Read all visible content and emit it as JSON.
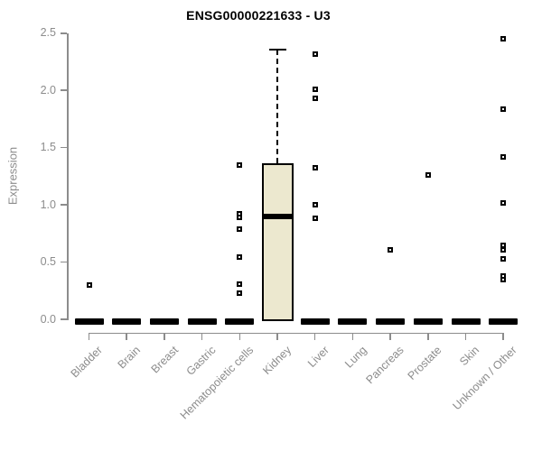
{
  "chart_data": {
    "type": "boxplot",
    "title": "ENSG00000221633 - U3",
    "ylabel": "Expression",
    "xlabel": "",
    "ylim": [
      0.0,
      2.5
    ],
    "yticks": [
      {
        "label": "0.0",
        "value": 0.0
      },
      {
        "label": "0.5",
        "value": 0.5
      },
      {
        "label": "1.0",
        "value": 1.0
      },
      {
        "label": "1.5",
        "value": 1.5
      },
      {
        "label": "2.0",
        "value": 2.0
      },
      {
        "label": "2.5",
        "value": 2.5
      }
    ],
    "grid": false,
    "legend": "none",
    "categories": [
      "Bladder",
      "Brain",
      "Breast",
      "Gastric",
      "Hematopoietic cells",
      "Kidney",
      "Liver",
      "Lung",
      "Pancreas",
      "Prostate",
      "Skin",
      "Unknown / Other"
    ],
    "series": [
      {
        "category": "Bladder",
        "q1": 0,
        "median": 0,
        "q3": 0,
        "whisker_low": 0,
        "whisker_high": 0,
        "outliers": [
          0.3
        ]
      },
      {
        "category": "Brain",
        "q1": 0,
        "median": 0,
        "q3": 0,
        "whisker_low": 0,
        "whisker_high": 0,
        "outliers": []
      },
      {
        "category": "Breast",
        "q1": 0,
        "median": 0,
        "q3": 0,
        "whisker_low": 0,
        "whisker_high": 0,
        "outliers": []
      },
      {
        "category": "Gastric",
        "q1": 0,
        "median": 0,
        "q3": 0,
        "whisker_low": 0,
        "whisker_high": 0,
        "outliers": []
      },
      {
        "category": "Hematopoietic cells",
        "q1": 0,
        "median": 0,
        "q3": 0,
        "whisker_low": 0,
        "whisker_high": 0,
        "outliers": [
          1.35,
          0.92,
          0.89,
          0.79,
          0.54,
          0.31,
          0.23
        ]
      },
      {
        "category": "Kidney",
        "q1": 0,
        "median": 0.9,
        "q3": 1.36,
        "whisker_low": 0,
        "whisker_high": 2.36,
        "outliers": []
      },
      {
        "category": "Liver",
        "q1": 0,
        "median": 0,
        "q3": 0,
        "whisker_low": 0,
        "whisker_high": 0,
        "outliers": [
          2.32,
          2.01,
          1.93,
          1.32,
          1.0,
          0.88
        ]
      },
      {
        "category": "Lung",
        "q1": 0,
        "median": 0,
        "q3": 0,
        "whisker_low": 0,
        "whisker_high": 0,
        "outliers": []
      },
      {
        "category": "Pancreas",
        "q1": 0,
        "median": 0,
        "q3": 0,
        "whisker_low": 0,
        "whisker_high": 0,
        "outliers": [
          0.61
        ]
      },
      {
        "category": "Prostate",
        "q1": 0,
        "median": 0,
        "q3": 0,
        "whisker_low": 0,
        "whisker_high": 0,
        "outliers": [
          1.26
        ]
      },
      {
        "category": "Skin",
        "q1": 0,
        "median": 0,
        "q3": 0,
        "whisker_low": 0,
        "whisker_high": 0,
        "outliers": []
      },
      {
        "category": "Unknown / Other",
        "q1": 0,
        "median": 0,
        "q3": 0,
        "whisker_low": 0,
        "whisker_high": 0,
        "outliers": [
          2.45,
          1.84,
          1.42,
          1.02,
          0.65,
          0.61,
          0.53,
          0.38,
          0.35
        ]
      }
    ],
    "colors": {
      "box_fill": "#ece8cf",
      "box_border": "#000000",
      "median": "#000000",
      "whisker": "#000000",
      "outlier_fill": "#ffffff",
      "outlier_border": "#000000",
      "axis": "#8c8c8c",
      "tick_label": "#8c8c8c",
      "title": "#000000",
      "background": "#ffffff"
    }
  }
}
